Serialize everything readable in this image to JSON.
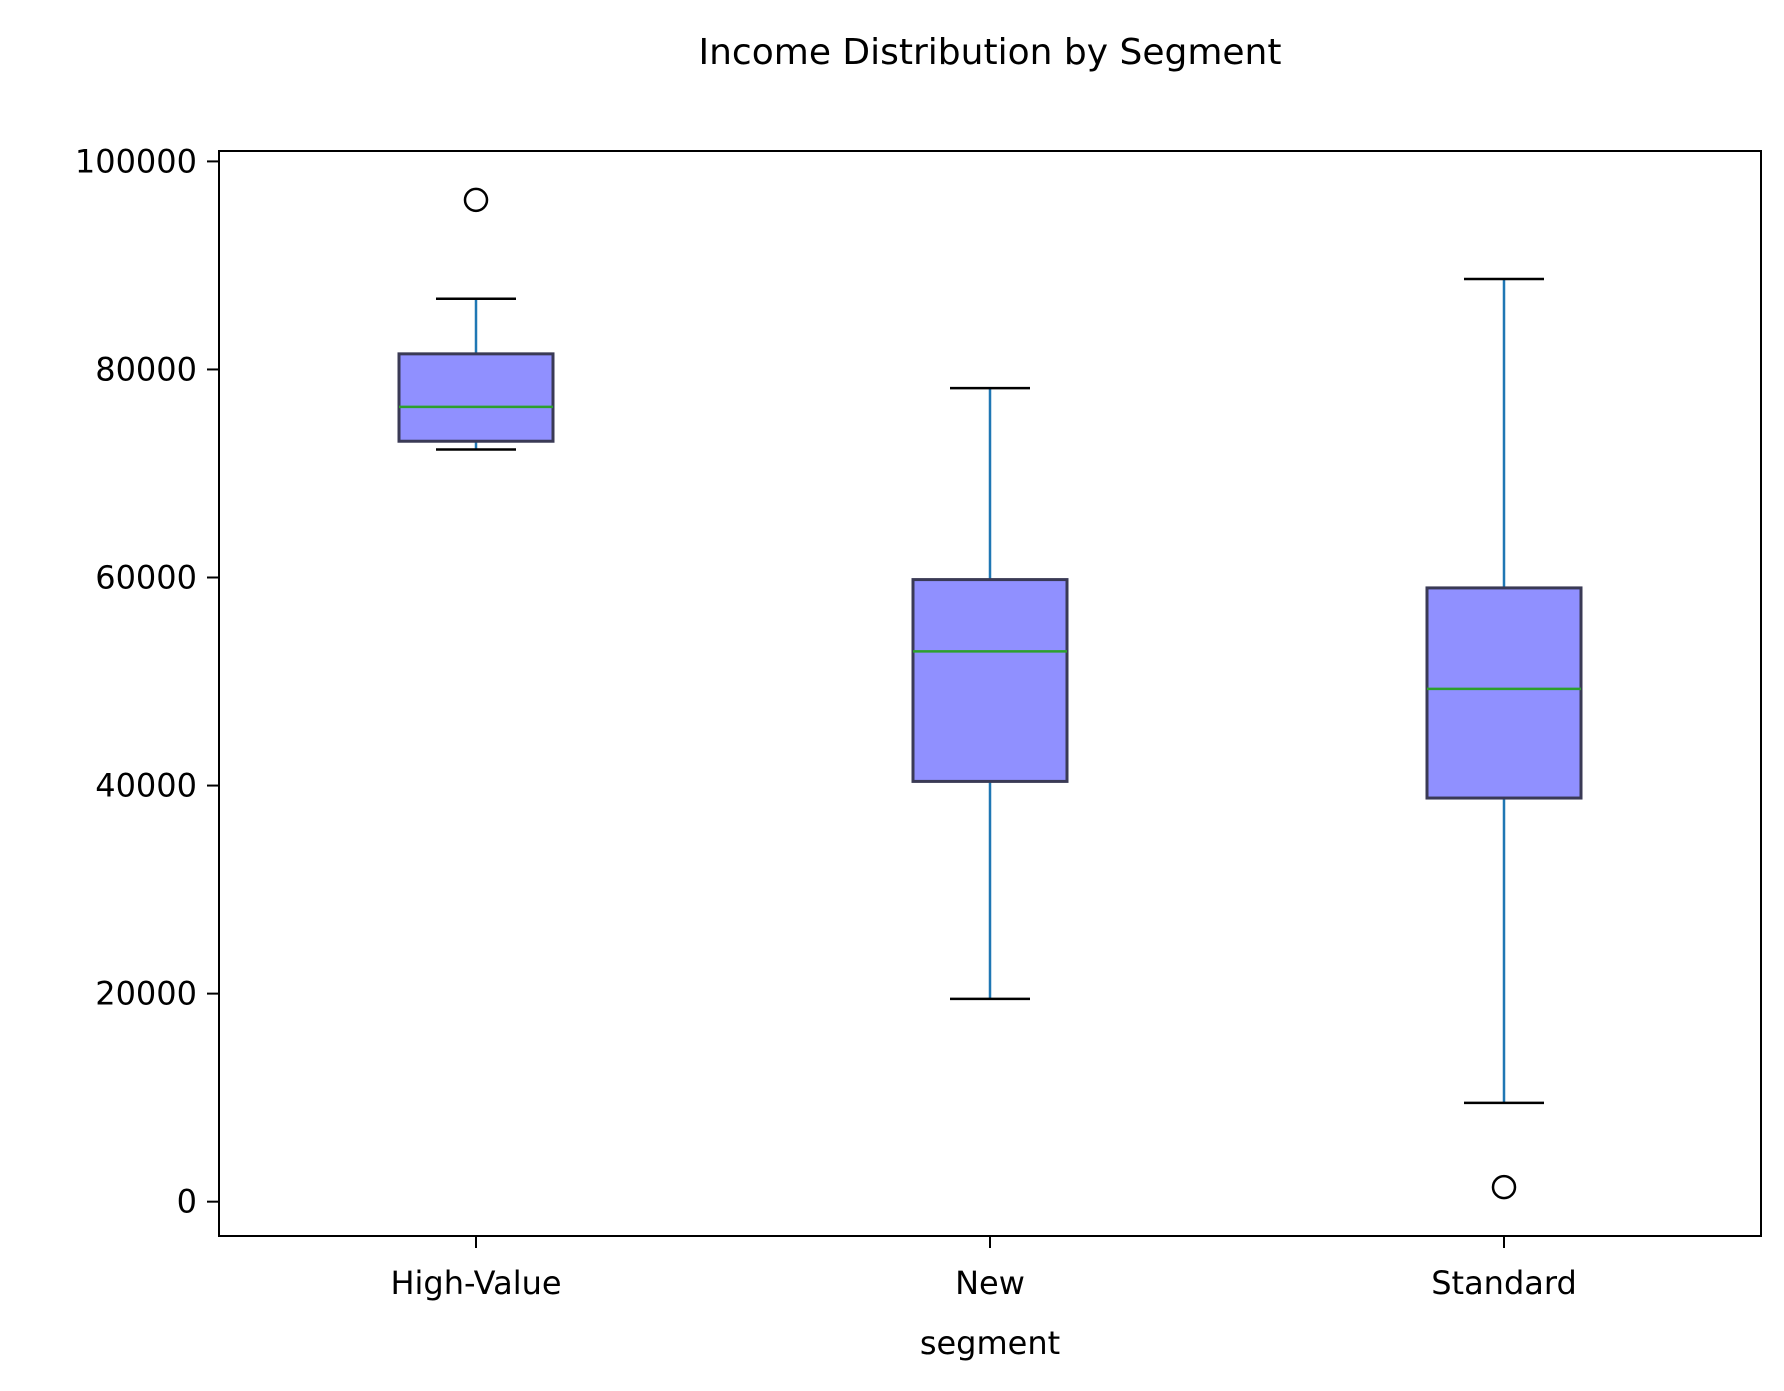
{
  "chart_data": {
    "type": "box",
    "title": "Income Distribution by Segment",
    "xlabel": "segment",
    "ylabel": "",
    "categories": [
      "High-Value",
      "New",
      "Standard"
    ],
    "ylim": [
      -3300,
      101000
    ],
    "yticks": [
      0,
      20000,
      40000,
      60000,
      80000,
      100000
    ],
    "ytick_labels": [
      "0",
      "20000",
      "40000",
      "60000",
      "80000",
      "100000"
    ],
    "grid": false,
    "boxes": [
      {
        "category": "High-Value",
        "whisker_low": 72300,
        "q1": 73100,
        "median": 76400,
        "q3": 81500,
        "whisker_high": 86800,
        "outliers": [
          96300
        ]
      },
      {
        "category": "New",
        "whisker_low": 19500,
        "q1": 40400,
        "median": 52900,
        "q3": 59800,
        "whisker_high": 78200,
        "outliers": []
      },
      {
        "category": "Standard",
        "whisker_low": 9500,
        "q1": 38800,
        "median": 49300,
        "q3": 59000,
        "whisker_high": 88700,
        "outliers": [
          1400
        ]
      }
    ],
    "colors": {
      "box_fill": "#9090ff",
      "box_edge": "#3a3a55",
      "whisker": "#1f77b4",
      "median": "#2ca02c",
      "cap": "#000000",
      "outlier_edge": "#000000",
      "axes": "#000000"
    }
  }
}
